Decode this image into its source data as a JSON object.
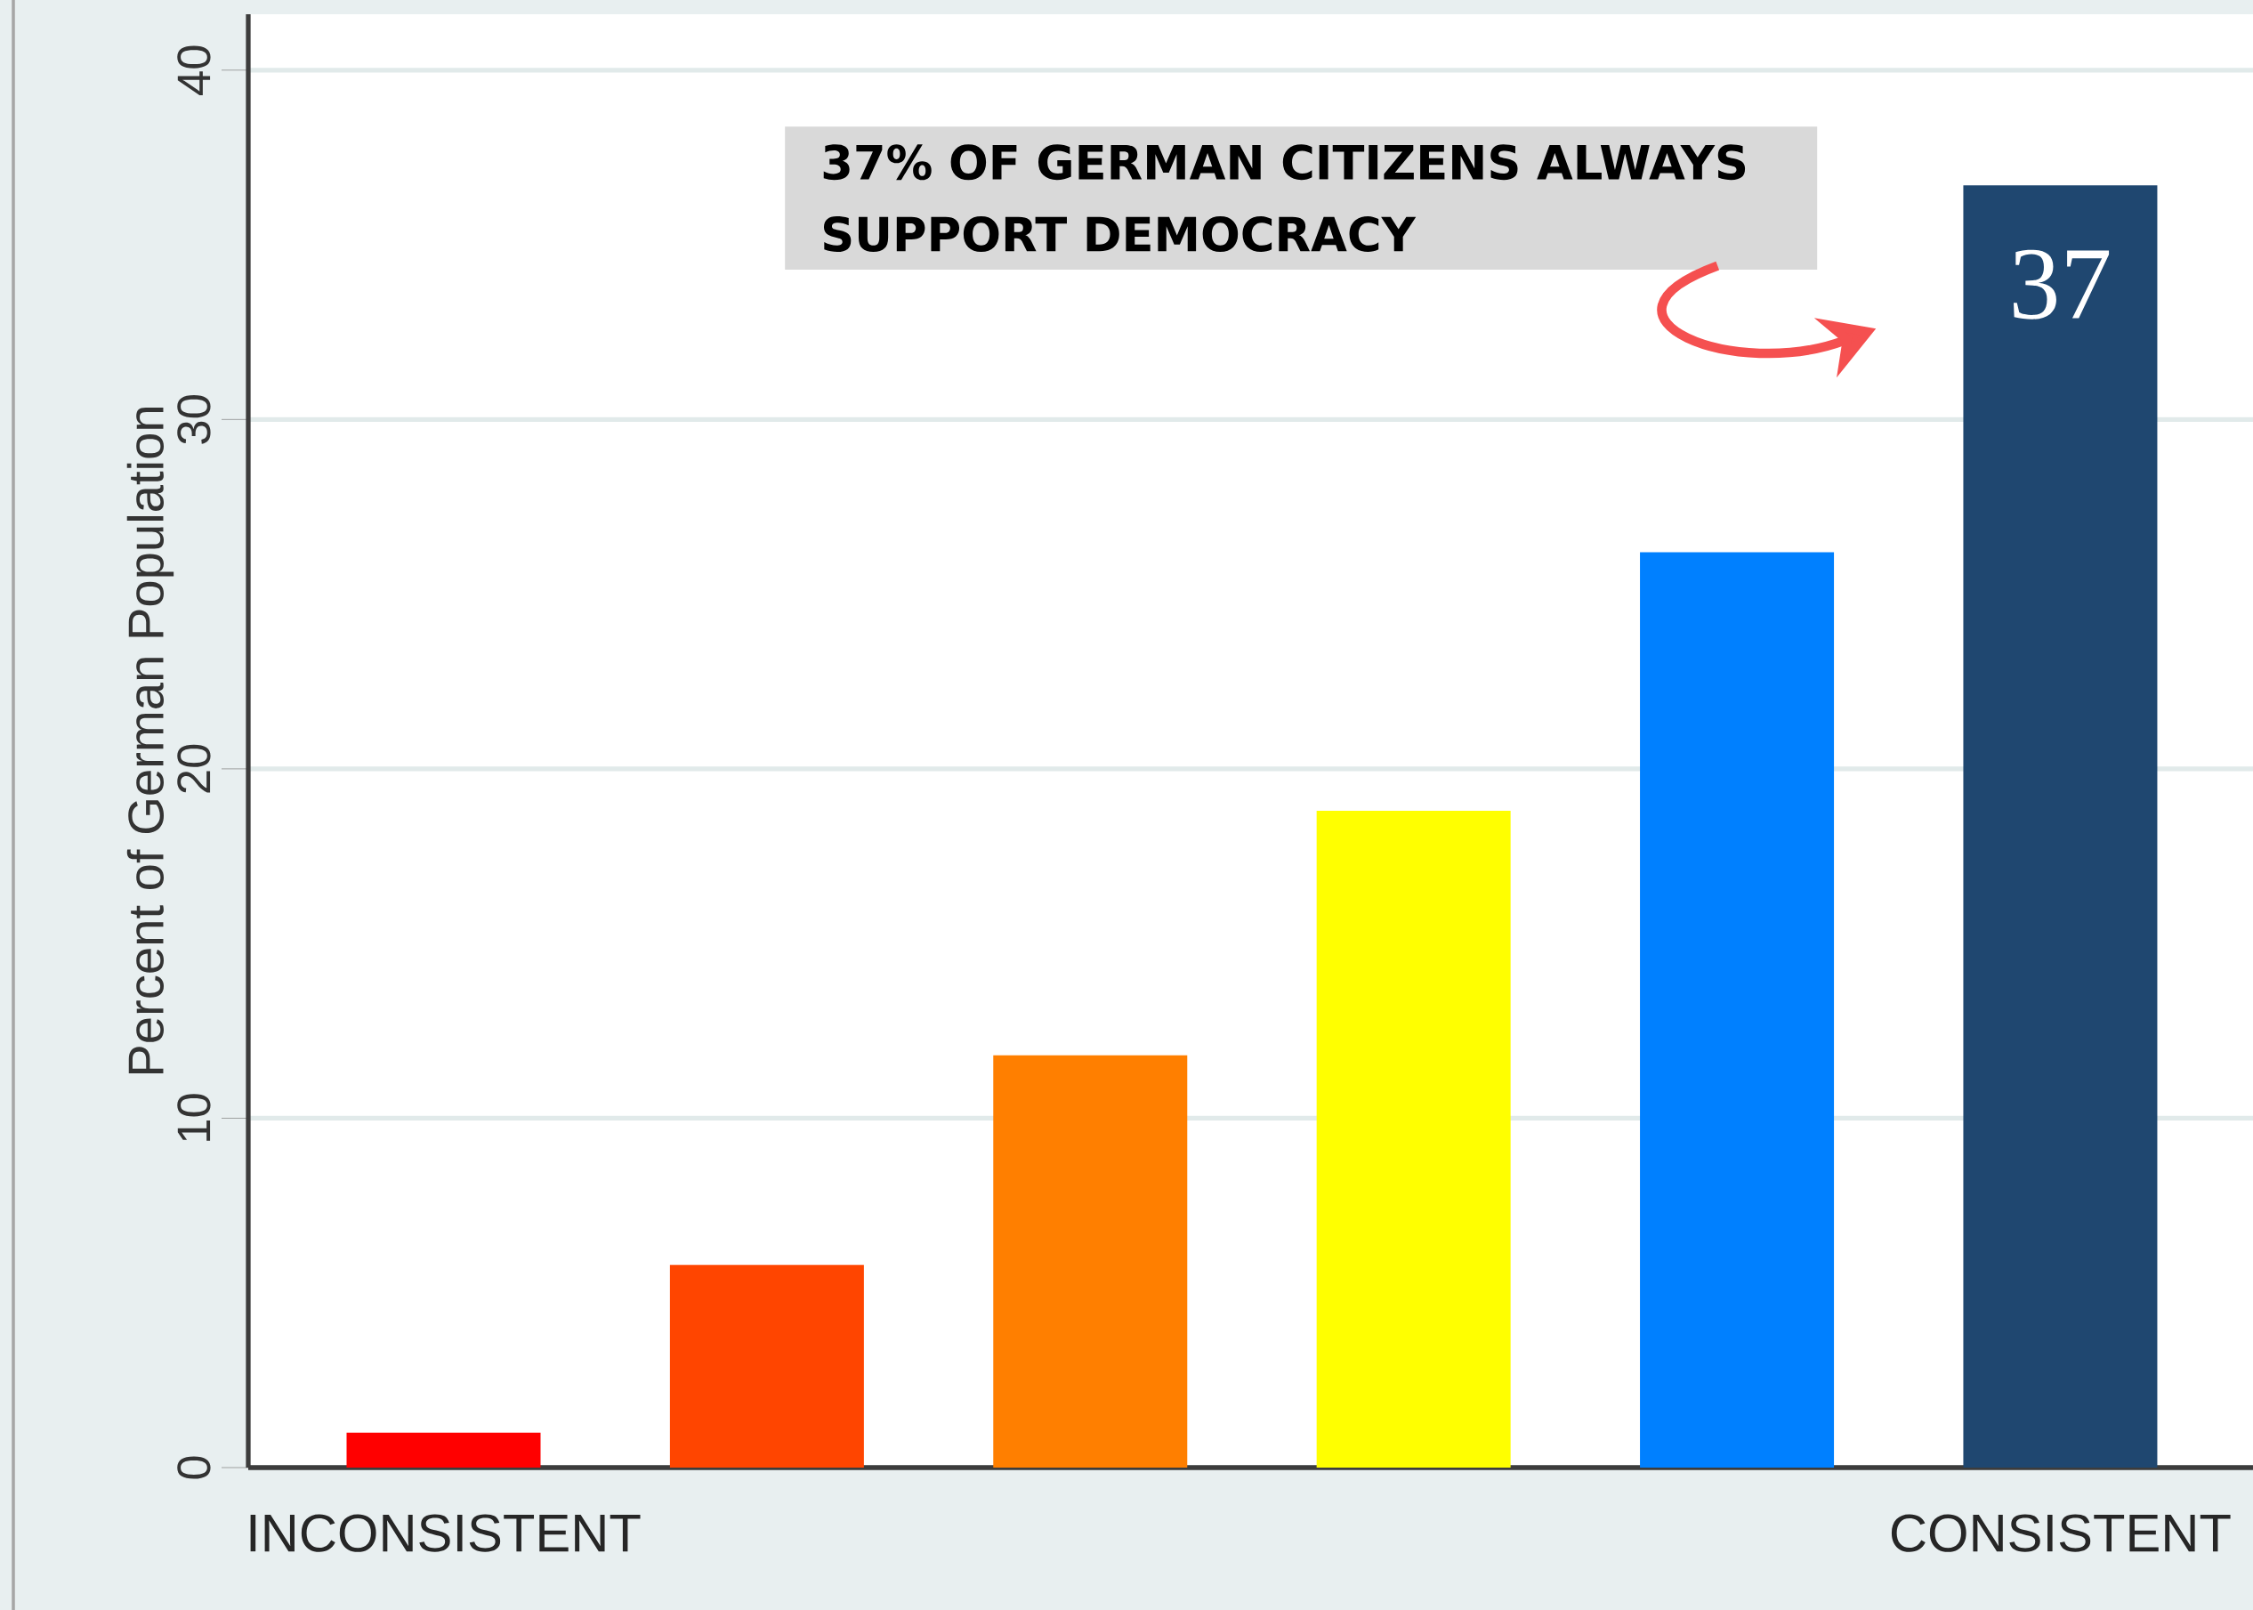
{
  "chart_data": {
    "type": "bar",
    "ylabel": "Percent of German Population",
    "categories": [
      "INCONSISTENT",
      null,
      null,
      null,
      null,
      "CONSISTENT"
    ],
    "values": [
      1.0,
      5.8,
      11.8,
      18.8,
      26.2,
      36.7
    ],
    "colors": [
      "#ff0000",
      "#ff4500",
      "#ff7f00",
      "#ffff00",
      "#0080ff",
      "#1f4770"
    ],
    "value_labels": [
      null,
      null,
      null,
      null,
      null,
      "37"
    ],
    "ylim": [
      0,
      41.6
    ],
    "yticks": [
      0,
      10,
      20,
      30,
      40
    ],
    "grid": "y",
    "annotations": [
      "37% OF GERMAN CITIZENS ALWAYS SUPPORT DEMOCRACY"
    ]
  }
}
